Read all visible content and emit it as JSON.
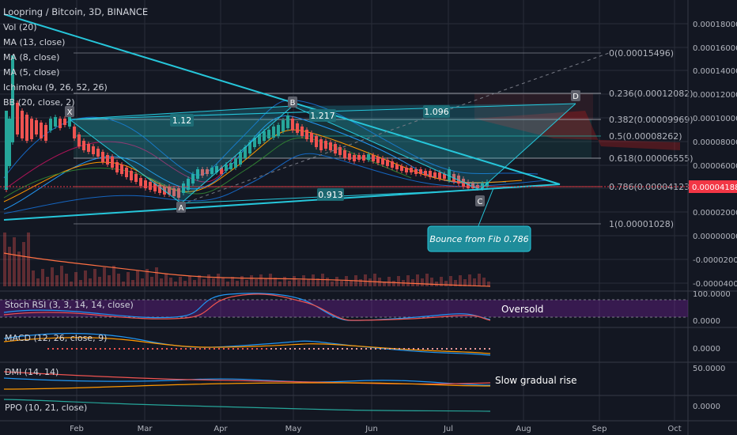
{
  "header": {
    "title": "Loopring / Bitcoin, 3D, BINANCE",
    "indicators": [
      "Vol (20)",
      "MA (13, close)",
      "MA (8, close)",
      "MA (5, close)",
      "Ichimoku (9, 26, 52, 26)",
      "BB (20, close, 2)"
    ]
  },
  "price_axis": {
    "ticks": [
      "0.00018000",
      "0.00016000",
      "0.00014000",
      "0.00012000",
      "0.00010000",
      "0.00008000",
      "0.00006000",
      "0.00004000",
      "0.00002000",
      "0.00000000",
      "-0.00002000",
      "-0.00004000"
    ],
    "current_price": "0.00004188",
    "current_color": "#f23645"
  },
  "time_axis": {
    "labels": [
      "Feb",
      "Mar",
      "Apr",
      "May",
      "Jun",
      "Jul",
      "Aug",
      "Sep",
      "Oct"
    ]
  },
  "fib_levels": [
    {
      "label": "0(0.00015496)"
    },
    {
      "label": "0.236(0.00012082)"
    },
    {
      "label": "0.382(0.00009969)"
    },
    {
      "label": "0.5(0.00008262)"
    },
    {
      "label": "0.618(0.00006555)"
    },
    {
      "label": "0.786(0.00004123)"
    },
    {
      "label": "1(0.00001028)"
    }
  ],
  "pattern_points": [
    "X",
    "A",
    "B",
    "C",
    "D"
  ],
  "pattern_ratios": [
    "1.12",
    "1.217",
    "1.096",
    "0.913"
  ],
  "callout": {
    "text": "Bounce from Fib 0.786"
  },
  "panes": {
    "stoch_rsi": {
      "label": "Stoch RSI (3, 3, 14, 14, close)",
      "ticks": [
        "100.0000",
        "0.0000"
      ],
      "note": "Oversold"
    },
    "macd": {
      "label": "MACD (12, 26, close, 9)",
      "ticks": [
        "0.0000"
      ]
    },
    "dmi": {
      "label": "DMI (14, 14)",
      "ticks": [
        "50.0000"
      ],
      "note": "Slow gradual rise"
    },
    "ppo": {
      "label": "PPO (10, 21, close)",
      "ticks": [
        "0.0000"
      ]
    }
  },
  "colors": {
    "accent": "#26c6da",
    "up": "#26a69a",
    "down": "#ef5350",
    "background": "#131722"
  }
}
